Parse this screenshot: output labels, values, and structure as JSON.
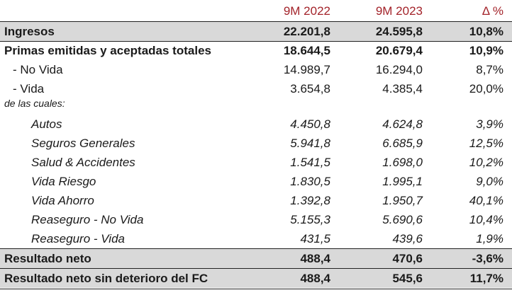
{
  "header": {
    "col1": "9M 2022",
    "col2": "9M 2023",
    "col3": "Δ %"
  },
  "rows": [
    {
      "label": "Ingresos",
      "v1": "22.201,8",
      "v2": "24.595,8",
      "v3": "10,8%"
    },
    {
      "label": "Primas emitidas y aceptadas totales",
      "v1": "18.644,5",
      "v2": "20.679,4",
      "v3": "10,9%"
    },
    {
      "label": "- No Vida",
      "v1": "14.989,7",
      "v2": "16.294,0",
      "v3": "8,7%"
    },
    {
      "label": "- Vida",
      "v1": "3.654,8",
      "v2": "4.385,4",
      "v3": "20,0%"
    },
    {
      "label": "de las cuales:",
      "v1": "",
      "v2": "",
      "v3": ""
    },
    {
      "label": "Autos",
      "v1": "4.450,8",
      "v2": "4.624,8",
      "v3": "3,9%"
    },
    {
      "label": "Seguros Generales",
      "v1": "5.941,8",
      "v2": "6.685,9",
      "v3": "12,5%"
    },
    {
      "label": "Salud & Accidentes",
      "v1": "1.541,5",
      "v2": "1.698,0",
      "v3": "10,2%"
    },
    {
      "label": "Vida Riesgo",
      "v1": "1.830,5",
      "v2": "1.995,1",
      "v3": "9,0%"
    },
    {
      "label": "Vida Ahorro",
      "v1": "1.392,8",
      "v2": "1.950,7",
      "v3": "40,1%"
    },
    {
      "label": "Reaseguro - No Vida",
      "v1": "5.155,3",
      "v2": "5.690,6",
      "v3": "10,4%"
    },
    {
      "label": "Reaseguro - Vida",
      "v1": "431,5",
      "v2": "439,6",
      "v3": "1,9%"
    },
    {
      "label": "Resultado neto",
      "v1": "488,4",
      "v2": "470,6",
      "v3": "-3,6%"
    },
    {
      "label": "Resultado neto sin deterioro del FC",
      "v1": "488,4",
      "v2": "545,6",
      "v3": "11,7%"
    }
  ]
}
